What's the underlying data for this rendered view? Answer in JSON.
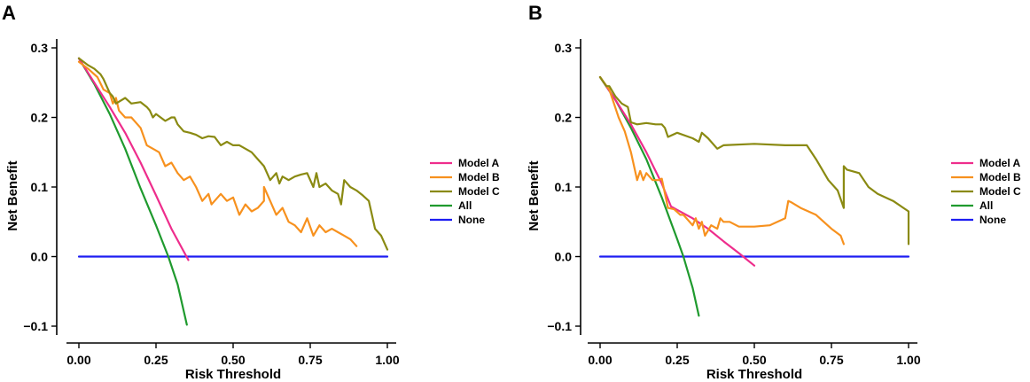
{
  "colors": {
    "Model A": "#ee2d8c",
    "Model B": "#f7911e",
    "Model C": "#8a8a12",
    "All": "#1f9a2e",
    "None": "#1d1df2"
  },
  "chart_data": [
    {
      "panel_label": "A",
      "type": "line",
      "xlabel": "Risk Threshold",
      "ylabel": "Net Benefit",
      "xlim": [
        0,
        1
      ],
      "ylim": [
        -0.1,
        0.3
      ],
      "xticks": [
        "0.00",
        "0.25",
        "0.50",
        "0.75",
        "1.00"
      ],
      "yticks": [
        "0.3",
        "0.2",
        "0.1",
        "0.0",
        "-0.1"
      ],
      "legend_position": "right",
      "series": [
        {
          "name": "Model A",
          "x": [
            0,
            0.05,
            0.1,
            0.15,
            0.2,
            0.25,
            0.3,
            0.355
          ],
          "y": [
            0.285,
            0.25,
            0.215,
            0.178,
            0.135,
            0.088,
            0.04,
            -0.005
          ]
        },
        {
          "name": "Model B",
          "x": [
            0,
            0.03,
            0.06,
            0.08,
            0.1,
            0.11,
            0.12,
            0.13,
            0.15,
            0.17,
            0.2,
            0.22,
            0.24,
            0.26,
            0.28,
            0.3,
            0.32,
            0.34,
            0.36,
            0.38,
            0.4,
            0.42,
            0.43,
            0.44,
            0.46,
            0.48,
            0.5,
            0.52,
            0.54,
            0.56,
            0.58,
            0.6,
            0.6,
            0.62,
            0.64,
            0.66,
            0.68,
            0.7,
            0.72,
            0.74,
            0.76,
            0.78,
            0.8,
            0.82,
            0.84,
            0.86,
            0.88,
            0.9
          ],
          "y": [
            0.28,
            0.27,
            0.258,
            0.24,
            0.235,
            0.22,
            0.228,
            0.21,
            0.2,
            0.2,
            0.185,
            0.16,
            0.155,
            0.15,
            0.13,
            0.135,
            0.12,
            0.11,
            0.115,
            0.1,
            0.08,
            0.09,
            0.075,
            0.08,
            0.09,
            0.08,
            0.085,
            0.06,
            0.075,
            0.065,
            0.07,
            0.08,
            0.1,
            0.08,
            0.06,
            0.07,
            0.05,
            0.045,
            0.035,
            0.055,
            0.03,
            0.045,
            0.035,
            0.04,
            0.035,
            0.03,
            0.025,
            0.015
          ]
        },
        {
          "name": "Model C",
          "x": [
            0,
            0.03,
            0.05,
            0.07,
            0.08,
            0.1,
            0.11,
            0.12,
            0.15,
            0.17,
            0.2,
            0.22,
            0.23,
            0.24,
            0.25,
            0.28,
            0.3,
            0.31,
            0.32,
            0.34,
            0.36,
            0.38,
            0.4,
            0.42,
            0.44,
            0.46,
            0.48,
            0.5,
            0.52,
            0.54,
            0.56,
            0.58,
            0.6,
            0.62,
            0.64,
            0.65,
            0.66,
            0.68,
            0.7,
            0.72,
            0.74,
            0.76,
            0.77,
            0.78,
            0.8,
            0.82,
            0.84,
            0.85,
            0.86,
            0.88,
            0.9,
            0.92,
            0.94,
            0.95,
            0.96,
            0.98,
            1.0
          ],
          "y": [
            0.285,
            0.275,
            0.27,
            0.262,
            0.255,
            0.235,
            0.23,
            0.22,
            0.228,
            0.22,
            0.222,
            0.215,
            0.21,
            0.2,
            0.205,
            0.195,
            0.2,
            0.2,
            0.19,
            0.18,
            0.178,
            0.175,
            0.17,
            0.173,
            0.172,
            0.16,
            0.165,
            0.16,
            0.16,
            0.155,
            0.15,
            0.14,
            0.13,
            0.11,
            0.12,
            0.105,
            0.115,
            0.11,
            0.115,
            0.118,
            0.12,
            0.1,
            0.12,
            0.1,
            0.105,
            0.095,
            0.09,
            0.075,
            0.11,
            0.1,
            0.095,
            0.088,
            0.08,
            0.06,
            0.04,
            0.03,
            0.01
          ]
        },
        {
          "name": "All",
          "x": [
            0,
            0.05,
            0.1,
            0.15,
            0.2,
            0.25,
            0.29,
            0.32,
            0.35
          ],
          "y": [
            0.285,
            0.248,
            0.205,
            0.155,
            0.098,
            0.045,
            0.0,
            -0.04,
            -0.098
          ]
        },
        {
          "name": "None",
          "x": [
            0,
            1
          ],
          "y": [
            0,
            0
          ]
        }
      ]
    },
    {
      "panel_label": "B",
      "type": "line",
      "xlabel": "Risk Threshold",
      "ylabel": "Net Benefit",
      "xlim": [
        0,
        1
      ],
      "ylim": [
        -0.1,
        0.3
      ],
      "xticks": [
        "0.00",
        "0.25",
        "0.50",
        "0.75",
        "1.00"
      ],
      "yticks": [
        "0.3",
        "0.2",
        "0.1",
        "0.0",
        "-0.1"
      ],
      "legend_position": "right",
      "series": [
        {
          "name": "Model A",
          "x": [
            0,
            0.05,
            0.1,
            0.15,
            0.2,
            0.23,
            0.3,
            0.35,
            0.4,
            0.45,
            0.5
          ],
          "y": [
            0.258,
            0.225,
            0.19,
            0.15,
            0.105,
            0.072,
            0.055,
            0.04,
            0.022,
            0.005,
            -0.013
          ]
        },
        {
          "name": "Model B",
          "x": [
            0,
            0.03,
            0.06,
            0.08,
            0.1,
            0.12,
            0.13,
            0.14,
            0.15,
            0.17,
            0.19,
            0.2,
            0.22,
            0.24,
            0.26,
            0.27,
            0.3,
            0.31,
            0.32,
            0.33,
            0.34,
            0.36,
            0.38,
            0.39,
            0.4,
            0.42,
            0.45,
            0.5,
            0.55,
            0.6,
            0.61,
            0.62,
            0.65,
            0.7,
            0.75,
            0.78,
            0.79
          ],
          "y": [
            0.258,
            0.24,
            0.2,
            0.18,
            0.15,
            0.11,
            0.123,
            0.11,
            0.12,
            0.11,
            0.11,
            0.112,
            0.07,
            0.068,
            0.06,
            0.06,
            0.045,
            0.055,
            0.04,
            0.05,
            0.03,
            0.045,
            0.04,
            0.055,
            0.05,
            0.05,
            0.043,
            0.043,
            0.045,
            0.055,
            0.08,
            0.078,
            0.07,
            0.06,
            0.04,
            0.03,
            0.018
          ]
        },
        {
          "name": "Model C",
          "x": [
            0,
            0.02,
            0.03,
            0.05,
            0.07,
            0.09,
            0.1,
            0.12,
            0.15,
            0.18,
            0.2,
            0.21,
            0.22,
            0.25,
            0.3,
            0.32,
            0.33,
            0.35,
            0.38,
            0.4,
            0.5,
            0.6,
            0.67,
            0.7,
            0.72,
            0.74,
            0.77,
            0.79,
            0.79,
            0.8,
            0.84,
            0.87,
            0.9,
            0.95,
            1.0,
            1.0
          ],
          "y": [
            0.258,
            0.245,
            0.245,
            0.23,
            0.22,
            0.215,
            0.193,
            0.19,
            0.192,
            0.19,
            0.19,
            0.185,
            0.172,
            0.178,
            0.17,
            0.165,
            0.178,
            0.17,
            0.155,
            0.16,
            0.162,
            0.16,
            0.16,
            0.14,
            0.125,
            0.11,
            0.095,
            0.07,
            0.13,
            0.125,
            0.12,
            0.1,
            0.09,
            0.08,
            0.065,
            0.018
          ]
        },
        {
          "name": "All",
          "x": [
            0,
            0.05,
            0.1,
            0.15,
            0.2,
            0.25,
            0.27,
            0.3,
            0.32
          ],
          "y": [
            0.258,
            0.225,
            0.185,
            0.14,
            0.085,
            0.025,
            0.0,
            -0.045,
            -0.085
          ]
        },
        {
          "name": "None",
          "x": [
            0,
            1
          ],
          "y": [
            0,
            0
          ]
        }
      ]
    }
  ]
}
